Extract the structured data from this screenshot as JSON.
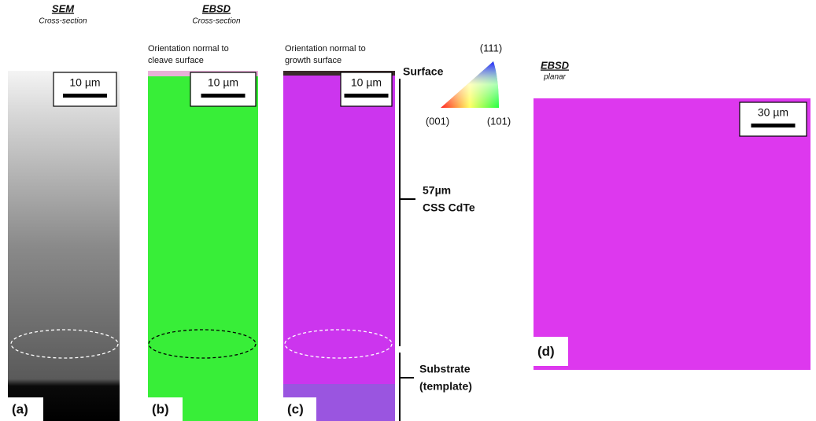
{
  "header_a": {
    "title": "SEM",
    "subtitle": "Cross-section"
  },
  "header_bc": {
    "title": "EBSD",
    "subtitle": "Cross-section"
  },
  "header_d": {
    "title": "EBSD",
    "subtitle": "planar"
  },
  "panels": [
    {
      "label": "(a)",
      "scale_bar": "10 µm"
    },
    {
      "label": "(b)",
      "scale_bar": "10 µm",
      "caption": [
        "Orientation normal to",
        "cleave surface"
      ]
    },
    {
      "label": "(c)",
      "scale_bar": "10 µm",
      "caption": [
        "Orientation normal to",
        "growth surface"
      ]
    },
    {
      "label": "(d)",
      "scale_bar": "30 µm"
    }
  ],
  "annotations": {
    "surface": "Surface",
    "layer": [
      "57µm",
      "CSS CdTe"
    ],
    "substrate": [
      "Substrate",
      "(template)"
    ]
  },
  "ipf_key": {
    "top": "(111)",
    "left": "(001)",
    "right": "(101)"
  }
}
